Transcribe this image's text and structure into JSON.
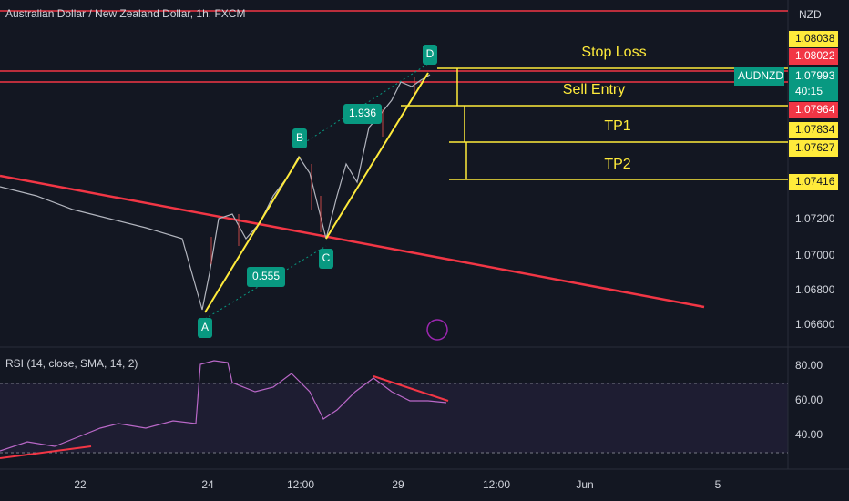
{
  "header": {
    "title": "Australian Dollar / New Zealand Dollar, 1h, FXCM",
    "currency": "NZD"
  },
  "price_axis": {
    "labels": [
      "1.08038",
      "1.08022",
      "1.07993",
      "1.07964",
      "1.07834",
      "1.07627",
      "1.07416",
      "1.07200",
      "1.07000",
      "1.06800",
      "1.06600"
    ],
    "symbol": "AUDNZD",
    "countdown": "40:15"
  },
  "annotations": {
    "stop_loss": "Stop Loss",
    "sell_entry": "Sell Entry",
    "tp1": "TP1",
    "tp2": "TP2"
  },
  "pattern": {
    "points": [
      "A",
      "B",
      "C",
      "D"
    ],
    "ratios": [
      "0.555",
      "1.936"
    ]
  },
  "rsi": {
    "label": "RSI (14, close, SMA, 14, 2)",
    "ticks": [
      "80.00",
      "60.00",
      "40.00"
    ]
  },
  "time_axis": {
    "labels": [
      "22",
      "24",
      "12:00",
      "29",
      "12:00",
      "Jun",
      "5"
    ]
  }
}
